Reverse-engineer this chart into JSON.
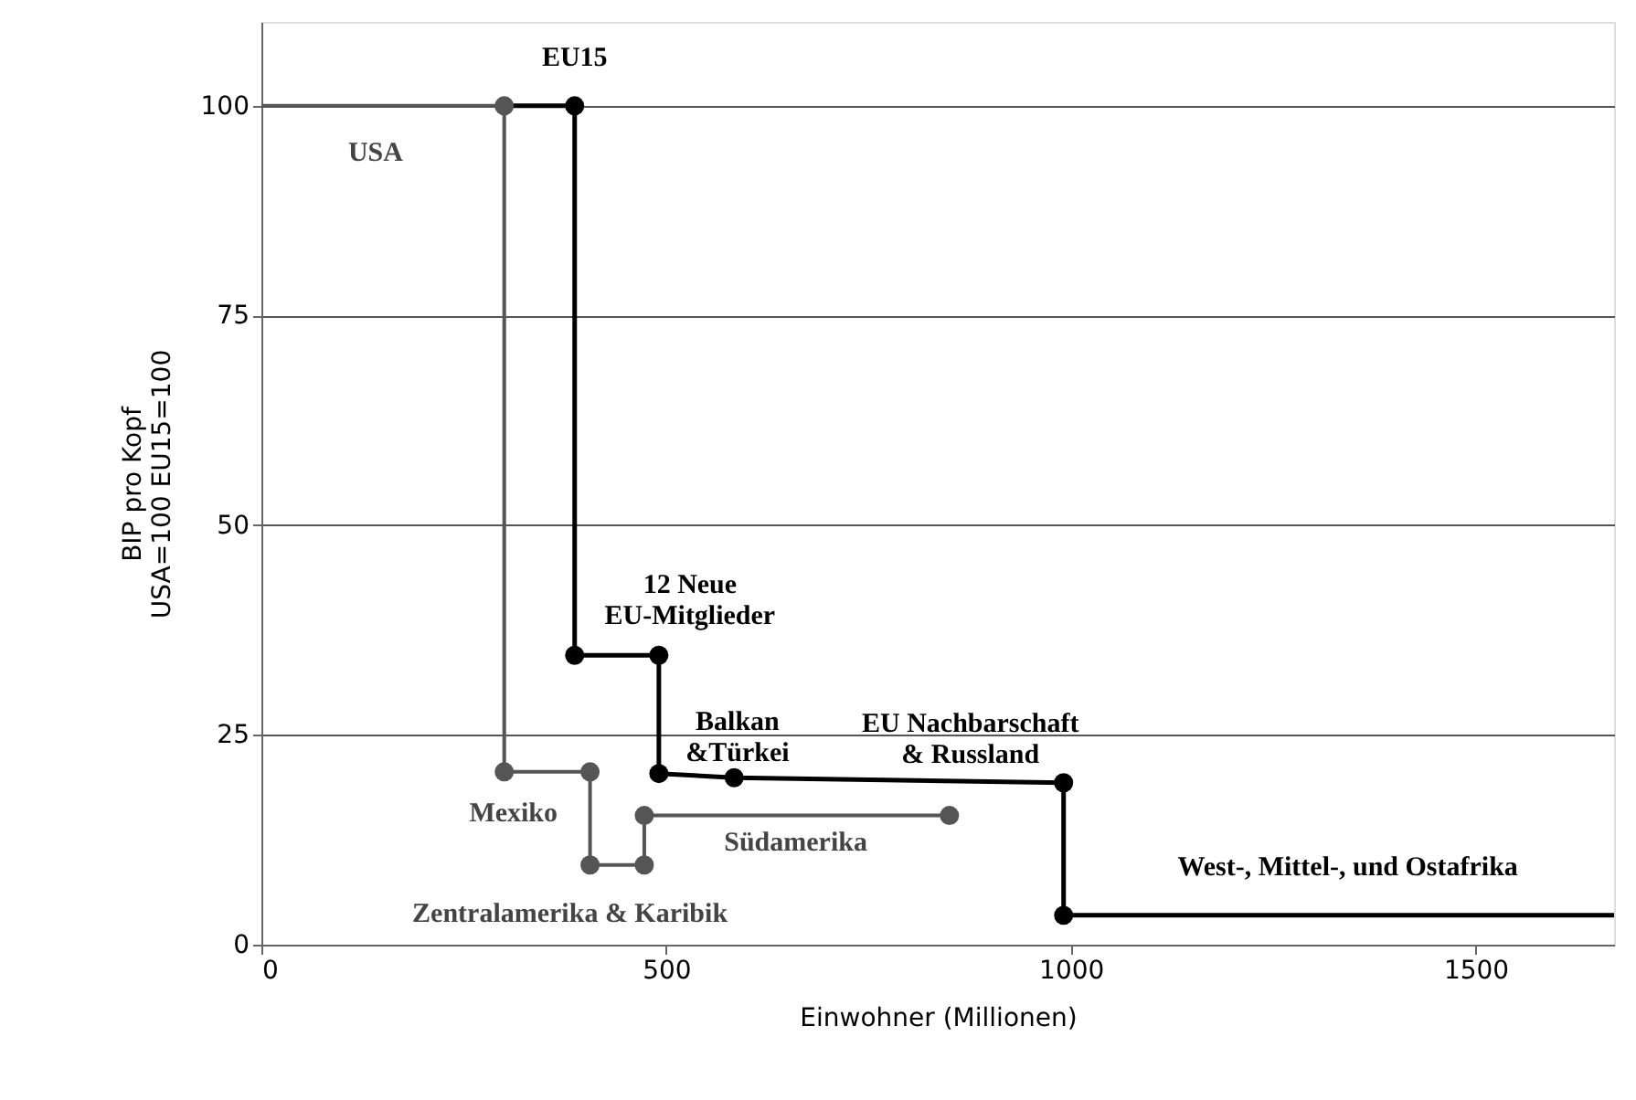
{
  "chart_data": {
    "type": "line",
    "xlabel": "Einwohner (Millionen)",
    "ylabel": "BIP pro Kopf\nUSA=100 EU15=100",
    "xlim": [
      0,
      1671
    ],
    "xticks": [
      0,
      500,
      1000,
      1500
    ],
    "ylim": [
      0,
      110
    ],
    "yticks": [
      0,
      25,
      50,
      75,
      100
    ],
    "grid": "y",
    "line_style": "solid",
    "series": [
      {
        "color": "#555555",
        "x": [
          0,
          300,
          300,
          406,
          406,
          473,
          473,
          850
        ],
        "values": [
          100,
          100,
          20.6,
          20.6,
          9.5,
          9.5,
          15.4,
          15.4
        ]
      },
      {
        "color": "#000000",
        "x": [
          300,
          387,
          387,
          491,
          491,
          584,
          991,
          991,
          1671
        ],
        "values": [
          100,
          100,
          34.5,
          34.5,
          20.4,
          19.9,
          19.3,
          3.5,
          3.5
        ]
      },
      {
        "type": "scatter",
        "marker": "circle",
        "color": "#555555",
        "x": [
          300,
          300,
          406,
          406,
          473,
          473,
          850
        ],
        "values": [
          100,
          20.6,
          20.6,
          9.5,
          9.5,
          15.4,
          15.4
        ]
      },
      {
        "type": "scatter",
        "marker": "circle",
        "color": "#000000",
        "x": [
          387,
          387,
          491,
          491,
          584,
          991,
          991
        ],
        "values": [
          100,
          34.5,
          34.5,
          20.4,
          19.9,
          19.3,
          3.5
        ]
      }
    ],
    "annotations": [
      {
        "text": "EU15",
        "x": 387,
        "y": 100
      },
      {
        "text": "USA",
        "x": 141,
        "y": 100
      },
      {
        "text": "12 Neue\nEU-Mitglieder",
        "x": 491,
        "y": 34.5
      },
      {
        "text": "Balkan\n&Türkei",
        "x": 491,
        "y": 20.4
      },
      {
        "text": "EU Nachbarschaft\n& Russland",
        "x": 991,
        "y": 19.3
      },
      {
        "text": "West-, Mittel-, und Ostafrika",
        "x": 1342,
        "y": 3.5
      },
      {
        "text": "Mexiko",
        "x": 300,
        "y": 20.6
      },
      {
        "text": "Südamerika",
        "x": 660,
        "y": 15.4
      },
      {
        "text": "Zentralamerika & Karibik",
        "x": 406,
        "y": 9.5
      }
    ]
  }
}
